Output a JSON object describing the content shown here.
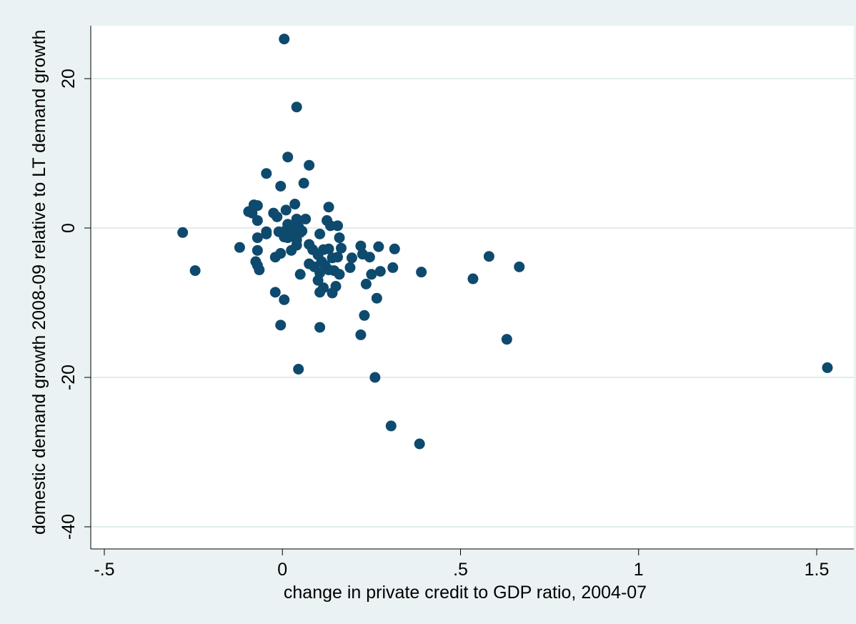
{
  "chart_data": {
    "type": "scatter",
    "title": "",
    "xlabel": "change in private credit to GDP ratio, 2004-07",
    "ylabel": "domestic demand growth 2008-09 relative to LT demand growth",
    "xlim": [
      -0.5,
      1.55
    ],
    "ylim": [
      -40,
      26
    ],
    "x_ticks": [
      -0.5,
      0,
      0.5,
      1,
      1.5
    ],
    "x_tick_labels": [
      "-.5",
      "0",
      ".5",
      "1",
      "1.5"
    ],
    "y_ticks": [
      -40,
      -20,
      0,
      20
    ],
    "y_tick_labels": [
      "-40",
      "-20",
      "0",
      "20"
    ],
    "grid": "horizontal",
    "marker_color": "#0e4a6d",
    "series": [
      {
        "points": [
          [
            0.005,
            25.3
          ],
          [
            0.04,
            16.2
          ],
          [
            0.015,
            9.5
          ],
          [
            0.075,
            8.4
          ],
          [
            -0.045,
            7.3
          ],
          [
            0.06,
            6.0
          ],
          [
            -0.005,
            5.6
          ],
          [
            0.13,
            2.8
          ],
          [
            -0.08,
            3.1
          ],
          [
            -0.07,
            3.0
          ],
          [
            -0.095,
            2.2
          ],
          [
            -0.085,
            2.0
          ],
          [
            -0.025,
            2.0
          ],
          [
            0.01,
            2.4
          ],
          [
            0.035,
            3.2
          ],
          [
            -0.015,
            1.5
          ],
          [
            0.04,
            1.2
          ],
          [
            0.065,
            1.2
          ],
          [
            0.125,
            1.0
          ],
          [
            -0.07,
            1.0
          ],
          [
            0.015,
            0.5
          ],
          [
            0.03,
            0.3
          ],
          [
            0.045,
            0.2
          ],
          [
            0.135,
            0.3
          ],
          [
            0.155,
            0.3
          ],
          [
            -0.045,
            -0.5
          ],
          [
            -0.045,
            -0.8
          ],
          [
            -0.01,
            -0.5
          ],
          [
            0.01,
            -0.3
          ],
          [
            0.02,
            -0.7
          ],
          [
            0.03,
            -1.0
          ],
          [
            0.05,
            -0.6
          ],
          [
            0.055,
            -0.4
          ],
          [
            0.105,
            -0.8
          ],
          [
            0.015,
            -1.3
          ],
          [
            0.04,
            -1.6
          ],
          [
            0.005,
            -1.2
          ],
          [
            -0.28,
            -0.6
          ],
          [
            -0.12,
            -2.6
          ],
          [
            -0.07,
            -1.3
          ],
          [
            0.16,
            -1.3
          ],
          [
            0.075,
            -2.2
          ],
          [
            0.165,
            -2.7
          ],
          [
            0.22,
            -2.4
          ],
          [
            0.04,
            -2.3
          ],
          [
            0.025,
            -3.0
          ],
          [
            0.085,
            -2.9
          ],
          [
            0.115,
            -2.9
          ],
          [
            0.13,
            -2.8
          ],
          [
            0.27,
            -2.5
          ],
          [
            0.315,
            -2.8
          ],
          [
            0.225,
            -3.5
          ],
          [
            -0.07,
            -3.0
          ],
          [
            -0.02,
            -3.9
          ],
          [
            -0.005,
            -3.4
          ],
          [
            0.1,
            -3.6
          ],
          [
            0.14,
            -4.0
          ],
          [
            0.155,
            -3.9
          ],
          [
            0.195,
            -4.0
          ],
          [
            0.245,
            -3.9
          ],
          [
            0.58,
            -3.8
          ],
          [
            0.11,
            -4.5
          ],
          [
            0.075,
            -4.8
          ],
          [
            0.09,
            -5.2
          ],
          [
            0.12,
            -5.0
          ],
          [
            0.13,
            -5.6
          ],
          [
            0.145,
            -5.7
          ],
          [
            0.19,
            -5.3
          ],
          [
            0.31,
            -5.3
          ],
          [
            0.665,
            -5.2
          ],
          [
            -0.075,
            -4.5
          ],
          [
            -0.07,
            -5.0
          ],
          [
            -0.065,
            -5.6
          ],
          [
            -0.245,
            -5.7
          ],
          [
            0.05,
            -6.2
          ],
          [
            0.105,
            -6.0
          ],
          [
            0.16,
            -6.2
          ],
          [
            0.25,
            -6.2
          ],
          [
            0.275,
            -5.8
          ],
          [
            0.39,
            -5.9
          ],
          [
            0.535,
            -6.8
          ],
          [
            0.1,
            -7.0
          ],
          [
            0.115,
            -8.0
          ],
          [
            0.15,
            -7.8
          ],
          [
            0.235,
            -7.5
          ],
          [
            -0.02,
            -8.6
          ],
          [
            0.105,
            -8.6
          ],
          [
            0.14,
            -8.7
          ],
          [
            0.005,
            -9.6
          ],
          [
            0.265,
            -9.4
          ],
          [
            -0.005,
            -13.0
          ],
          [
            0.105,
            -13.3
          ],
          [
            0.23,
            -11.7
          ],
          [
            0.22,
            -14.3
          ],
          [
            0.63,
            -14.9
          ],
          [
            0.045,
            -18.9
          ],
          [
            0.26,
            -20.0
          ],
          [
            1.53,
            -18.7
          ],
          [
            0.305,
            -26.5
          ],
          [
            0.385,
            -28.9
          ]
        ]
      }
    ]
  }
}
